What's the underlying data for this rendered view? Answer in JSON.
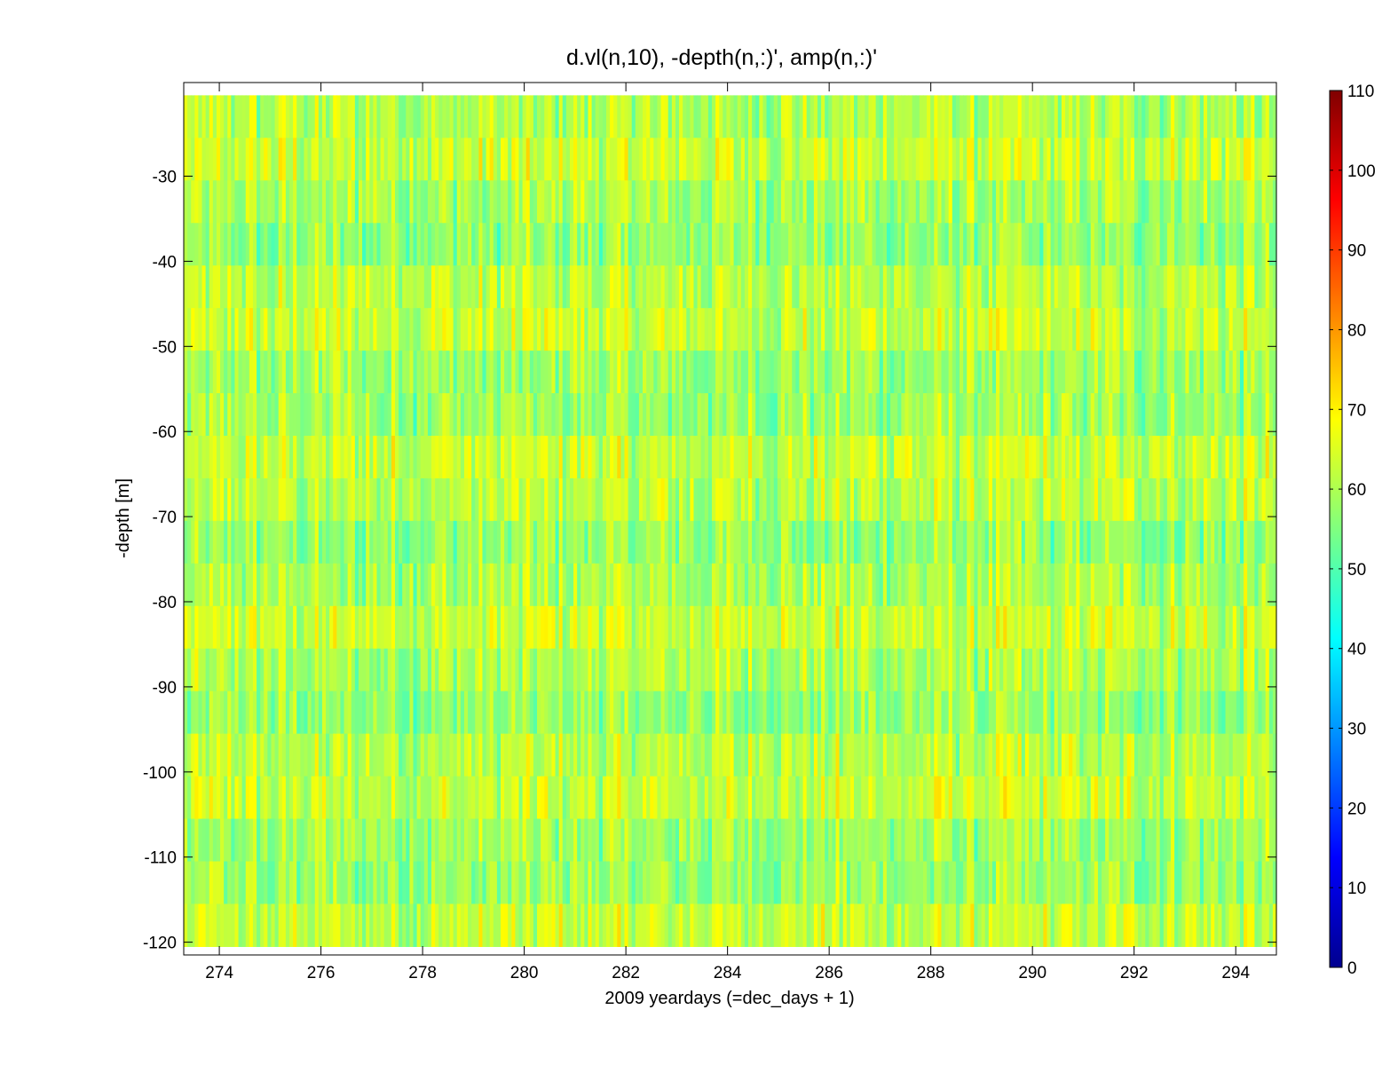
{
  "chart_data": {
    "type": "heatmap",
    "title": "d.vl(n,10), -depth(n,:)',      amp(n,:)'",
    "xlabel": "2009 yeardays (=dec_days + 1)",
    "ylabel": "-depth [m]",
    "xlim": [
      273.3,
      294.8
    ],
    "ylim": [
      -121.5,
      -19
    ],
    "xticks": [
      274,
      276,
      278,
      280,
      282,
      284,
      286,
      288,
      290,
      292,
      294
    ],
    "xtick_labels": [
      "274",
      "276",
      "278",
      "280",
      "282",
      "284",
      "286",
      "288",
      "290",
      "292",
      "294"
    ],
    "yticks": [
      -30,
      -40,
      -50,
      -60,
      -70,
      -80,
      -90,
      -100,
      -110,
      -120
    ],
    "ytick_labels": [
      "-30",
      "-40",
      "-50",
      "-60",
      "-70",
      "-80",
      "-90",
      "-100",
      "-110",
      "-120"
    ],
    "colormap": "jet",
    "clim": [
      0,
      110
    ],
    "colorbar_ticks": [
      0,
      10,
      20,
      30,
      40,
      50,
      60,
      70,
      80,
      90,
      100,
      110
    ],
    "colorbar_tick_labels": [
      "0",
      "10",
      "20",
      "30",
      "40",
      "50",
      "60",
      "70",
      "80",
      "90",
      "100",
      "110"
    ],
    "colorbar_position": "right",
    "depth_bins": [
      -23,
      -28,
      -33,
      -38,
      -43,
      -48,
      -53,
      -58,
      -63,
      -68,
      -73,
      -78,
      -83,
      -88,
      -93,
      -98,
      -103,
      -108,
      -113,
      -118
    ],
    "time_columns": 300,
    "value_range_observed": [
      40,
      78
    ],
    "grid": false
  }
}
